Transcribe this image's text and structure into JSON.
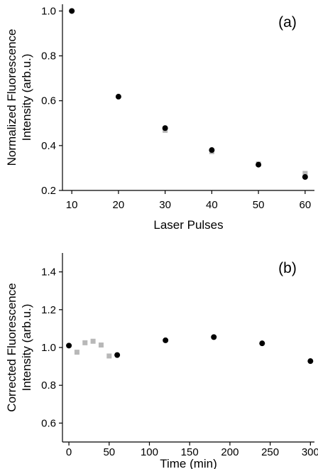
{
  "chart_data": [
    {
      "type": "scatter",
      "panel_label": "(a)",
      "xlabel": "Laser Pulses",
      "ylabel_lines": [
        "Normalized Fluorescence",
        "Intensity (arb.u.)"
      ],
      "xlim": [
        8,
        62
      ],
      "ylim": [
        0.2,
        1.03
      ],
      "xticks": [
        10,
        20,
        30,
        40,
        50,
        60
      ],
      "yticks": [
        0.2,
        0.4,
        0.6,
        0.8,
        1.0
      ],
      "ytick_labels": [
        "0.2",
        "0.4",
        "0.6",
        "0.8",
        "1.0"
      ],
      "grid": false,
      "series": [
        {
          "marker": "square",
          "color": "#b8b8b8",
          "points": [
            {
              "x": 30,
              "y": 0.468
            },
            {
              "x": 40,
              "y": 0.373
            },
            {
              "x": 50,
              "y": 0.318
            },
            {
              "x": 60,
              "y": 0.276
            }
          ]
        },
        {
          "marker": "circle",
          "color": "#000000",
          "points": [
            {
              "x": 10,
              "y": 1.0
            },
            {
              "x": 20,
              "y": 0.618
            },
            {
              "x": 30,
              "y": 0.478
            },
            {
              "x": 40,
              "y": 0.38
            },
            {
              "x": 50,
              "y": 0.315
            },
            {
              "x": 60,
              "y": 0.26
            }
          ]
        }
      ]
    },
    {
      "type": "scatter",
      "panel_label": "(b)",
      "xlabel": "Time (min)",
      "ylabel_lines": [
        "Corrected Fluorescence",
        "Intensity (arb.u.)"
      ],
      "xlim": [
        -8,
        305
      ],
      "ylim": [
        0.5,
        1.5
      ],
      "xticks": [
        0,
        50,
        100,
        150,
        200,
        250,
        300
      ],
      "yticks": [
        0.6,
        0.8,
        1.0,
        1.2,
        1.4
      ],
      "ytick_labels": [
        "0.6",
        "0.8",
        "1.0",
        "1.2",
        "1.4"
      ],
      "grid": false,
      "series": [
        {
          "marker": "square",
          "color": "#b8b8b8",
          "points": [
            {
              "x": 10,
              "y": 0.975
            },
            {
              "x": 20,
              "y": 1.025
            },
            {
              "x": 30,
              "y": 1.033
            },
            {
              "x": 40,
              "y": 1.013
            },
            {
              "x": 50,
              "y": 0.955
            }
          ]
        },
        {
          "marker": "circle",
          "color": "#000000",
          "points": [
            {
              "x": 0,
              "y": 1.01
            },
            {
              "x": 60,
              "y": 0.96
            },
            {
              "x": 120,
              "y": 1.038
            },
            {
              "x": 180,
              "y": 1.055
            },
            {
              "x": 240,
              "y": 1.022
            },
            {
              "x": 300,
              "y": 0.928
            }
          ]
        }
      ]
    }
  ]
}
